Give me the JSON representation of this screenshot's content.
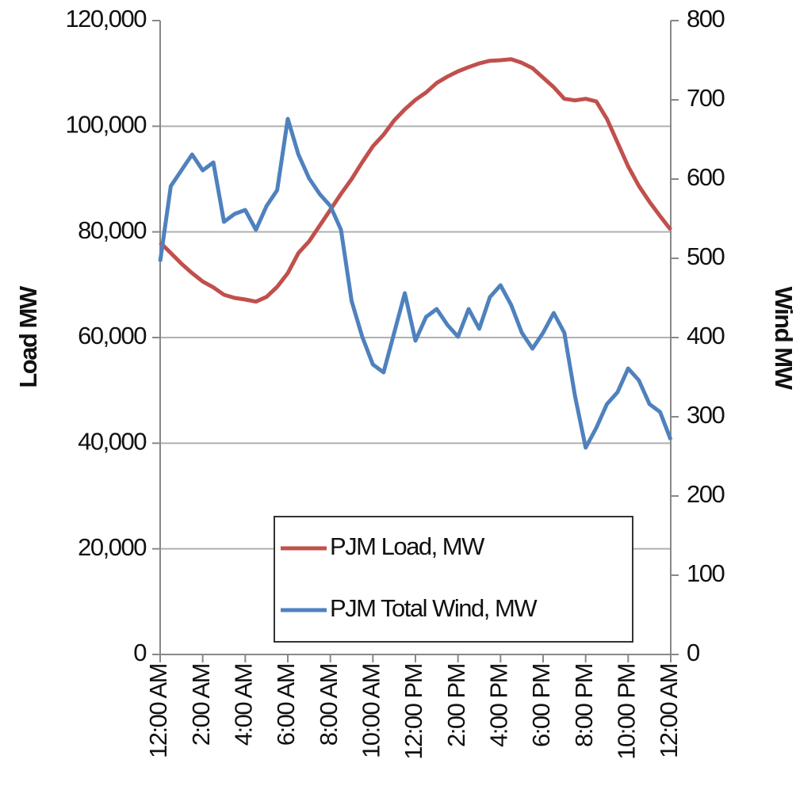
{
  "chart_data": {
    "type": "line",
    "y_label": "Load MW",
    "y2_label": "Wind MW",
    "categories": [
      "12:00 AM",
      null,
      null,
      null,
      "2:00 AM",
      null,
      null,
      null,
      "4:00 AM",
      null,
      null,
      null,
      "6:00 AM",
      null,
      null,
      null,
      "8:00 AM",
      null,
      null,
      null,
      "10:00 AM",
      null,
      null,
      null,
      "12:00 PM",
      null,
      null,
      null,
      "2:00 PM",
      null,
      null,
      null,
      "4:00 PM",
      null,
      null,
      null,
      "6:00 PM",
      null,
      null,
      null,
      "8:00 PM",
      null,
      null,
      null,
      "10:00 PM",
      null,
      null,
      null,
      "12:00 AM"
    ],
    "series": [
      {
        "name": "PJM Load, MW",
        "color": "#c0504d",
        "axis": "y",
        "values": [
          78000,
          76000,
          74000,
          72200,
          70600,
          69500,
          68100,
          67500,
          67200,
          66800,
          67700,
          69600,
          72200,
          76000,
          78200,
          81200,
          84200,
          87200,
          90000,
          93200,
          96200,
          98400,
          101100,
          103200,
          105000,
          106400,
          108200,
          109400,
          110400,
          111200,
          111900,
          112400,
          112500,
          112700,
          112000,
          111000,
          109200,
          107400,
          105200,
          104900,
          105200,
          104700,
          101400,
          96900,
          92400,
          88700,
          85700,
          83000,
          80400
        ]
      },
      {
        "name": "PJM Total Wind, MW",
        "color": "#4f81bd",
        "axis": "y2",
        "values": [
          496,
          591,
          611,
          631,
          611,
          621,
          546,
          556,
          561,
          536,
          566,
          586,
          676,
          631,
          601,
          581,
          566,
          536,
          446,
          401,
          366,
          356,
          406,
          456,
          396,
          426,
          436,
          416,
          401,
          436,
          411,
          451,
          466,
          441,
          406,
          386,
          406,
          431,
          406,
          326,
          261,
          286,
          316,
          331,
          361,
          346,
          316,
          306,
          271
        ]
      }
    ],
    "ylim": [
      0,
      120000
    ],
    "yticks": [
      0,
      {
        "value": 20000,
        "label": "20,000"
      },
      {
        "value": 40000,
        "label": "40,000"
      },
      {
        "value": 60000,
        "label": "60,000"
      },
      {
        "value": 80000,
        "label": "80,000"
      },
      {
        "value": 100000,
        "label": "100,000"
      },
      {
        "value": 120000,
        "label": "120,000"
      }
    ],
    "y2lim": [
      0,
      800
    ],
    "y2ticks": [
      0,
      100,
      200,
      300,
      400,
      500,
      600,
      700,
      800
    ],
    "grid": true,
    "legend": "bottom"
  }
}
